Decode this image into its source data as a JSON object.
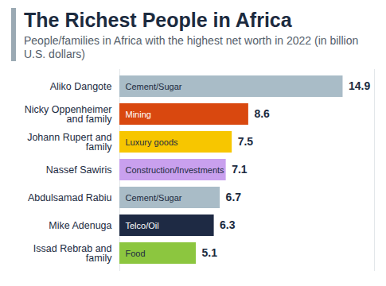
{
  "chart_data": {
    "type": "bar",
    "orientation": "horizontal",
    "title": "The Richest People in Africa",
    "subtitle": "People/families in Africa with the highest net worth in 2022 (in billion U.S. dollars)",
    "categories": [
      "Aliko Dangote",
      "Nicky Oppenheimer and family",
      "Johann Rupert and family",
      "Nassef Sawiris",
      "Abdulsamad Rabiu",
      "Mike Adenuga",
      "Issad Rebrab and family"
    ],
    "values": [
      14.9,
      8.6,
      7.5,
      7.1,
      6.7,
      6.3,
      5.1
    ],
    "sectors": [
      "Cement/Sugar",
      "Mining",
      "Luxury goods",
      "Construction/Investments",
      "Cement/Sugar",
      "Telco/Oil",
      "Food"
    ],
    "colors": [
      "#a9bcc7",
      "#d9480f",
      "#f7c600",
      "#c9a0ee",
      "#a9bcc7",
      "#1e2a44",
      "#8cc63f"
    ],
    "xlim": [
      0,
      17
    ],
    "xticks": [],
    "tick_labels": "y",
    "data_labels": true,
    "grid": false
  }
}
